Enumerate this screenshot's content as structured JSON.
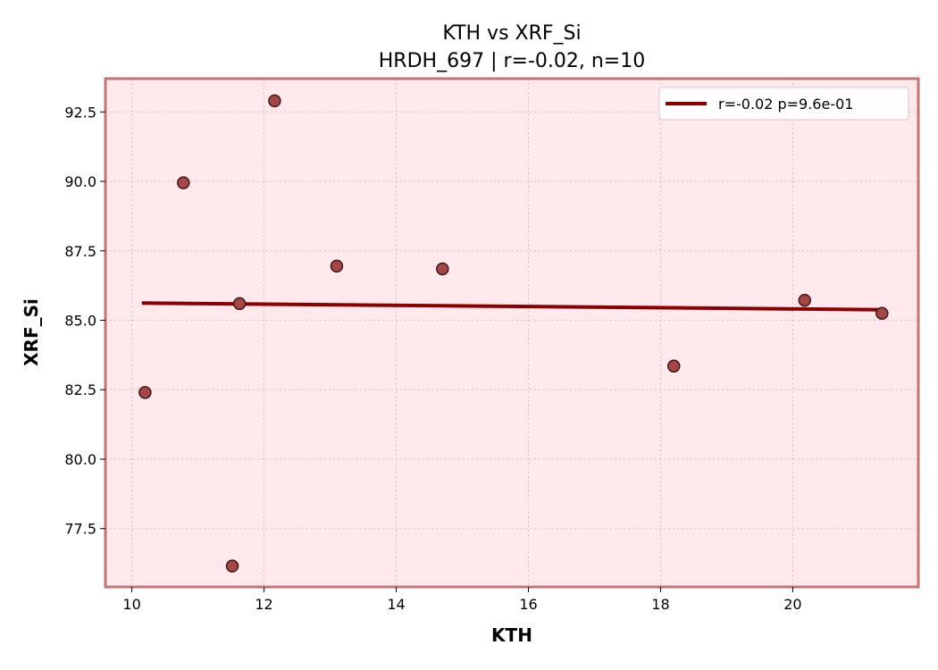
{
  "chart_data": {
    "type": "scatter",
    "title": "KTH vs XRF_Si",
    "subtitle": "HRDH_697 | r=-0.02, n=10",
    "xlabel": "KTH",
    "ylabel": "XRF_Si",
    "xlim": [
      9.6,
      21.9
    ],
    "ylim": [
      75.4,
      93.7
    ],
    "xticks": [
      10,
      12,
      14,
      16,
      18,
      20
    ],
    "yticks": [
      77.5,
      80.0,
      82.5,
      85.0,
      87.5,
      90.0,
      92.5
    ],
    "xtick_labels": [
      "10",
      "12",
      "14",
      "16",
      "18",
      "20"
    ],
    "ytick_labels": [
      "77.5",
      "80.0",
      "82.5",
      "85.0",
      "87.5",
      "90.0",
      "92.5"
    ],
    "grid": true,
    "legend_position": "top-right",
    "points": [
      {
        "x": 10.2,
        "y": 82.4
      },
      {
        "x": 10.78,
        "y": 89.95
      },
      {
        "x": 11.52,
        "y": 76.15
      },
      {
        "x": 11.63,
        "y": 85.6
      },
      {
        "x": 12.16,
        "y": 92.9
      },
      {
        "x": 13.1,
        "y": 86.95
      },
      {
        "x": 14.7,
        "y": 86.85
      },
      {
        "x": 18.2,
        "y": 83.35
      },
      {
        "x": 20.18,
        "y": 85.72
      },
      {
        "x": 21.35,
        "y": 85.25
      }
    ],
    "trendline": {
      "x": [
        10.15,
        21.35
      ],
      "y": [
        85.62,
        85.38
      ]
    },
    "legend": {
      "label": "r=-0.02  p=9.6e-01"
    },
    "colors": {
      "plot_background": "#ffe9ec",
      "frame": "#c07575",
      "point_fill": "#a84545",
      "point_edge": "#3a1a1a",
      "trendline": "#8b0000",
      "grid": "#e2b8bc"
    }
  }
}
